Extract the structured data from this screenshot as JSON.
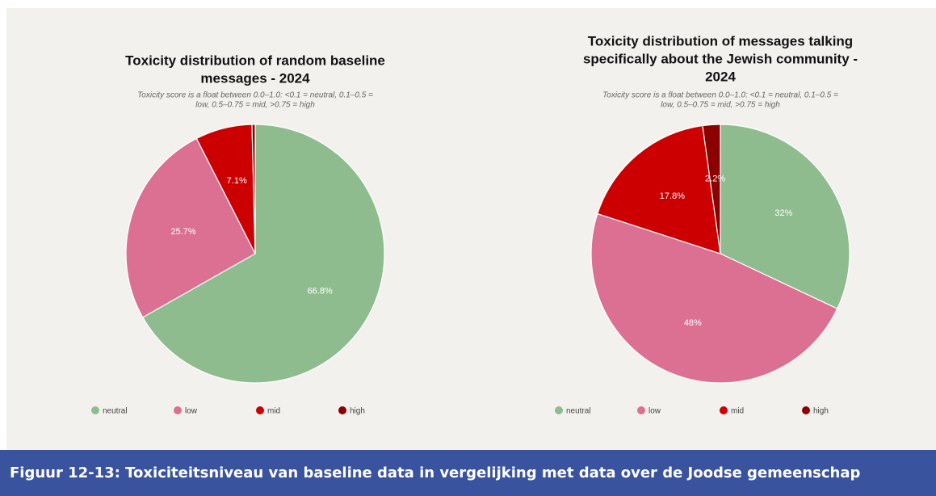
{
  "chart_data": [
    {
      "type": "pie",
      "title": [
        "Toxicity distribution of random baseline",
        "messages - 2024"
      ],
      "subtitle": [
        "Toxicity score is a float between 0.0–1.0: <0.1 = neutral, 0.1–0.5 =",
        "low, 0.5–0.75 = mid, >0.75 = high"
      ],
      "categories": [
        "neutral",
        "low",
        "mid",
        "high"
      ],
      "values": [
        66.8,
        25.7,
        7.1,
        0.4
      ],
      "value_labels": [
        "66.8%",
        "25.7%",
        "7.1%",
        null
      ],
      "colors": [
        "#8fbc8f",
        "#db7093",
        "#cc0000",
        "#8b0000"
      ],
      "legend": "bottom"
    },
    {
      "type": "pie",
      "title": [
        "Toxicity distribution of messages talking",
        "specifically about the Jewish community -",
        "2024"
      ],
      "subtitle": [
        "Toxicity score is a float between 0.0–1.0: <0.1 = neutral, 0.1–0.5 =",
        "low, 0.5–0.75 = mid, >0.75 = high"
      ],
      "categories": [
        "neutral",
        "low",
        "mid",
        "high"
      ],
      "values": [
        32,
        48,
        17.8,
        2.2
      ],
      "value_labels": [
        "32%",
        "48%",
        "17.8%",
        "2.2%"
      ],
      "colors": [
        "#8fbc8f",
        "#db7093",
        "#cc0000",
        "#8b0000"
      ],
      "legend": "bottom"
    }
  ],
  "caption": "Figuur 12-13: Toxiciteitsniveau van baseline data in vergelijking met data over de Joodse gemeenschap"
}
